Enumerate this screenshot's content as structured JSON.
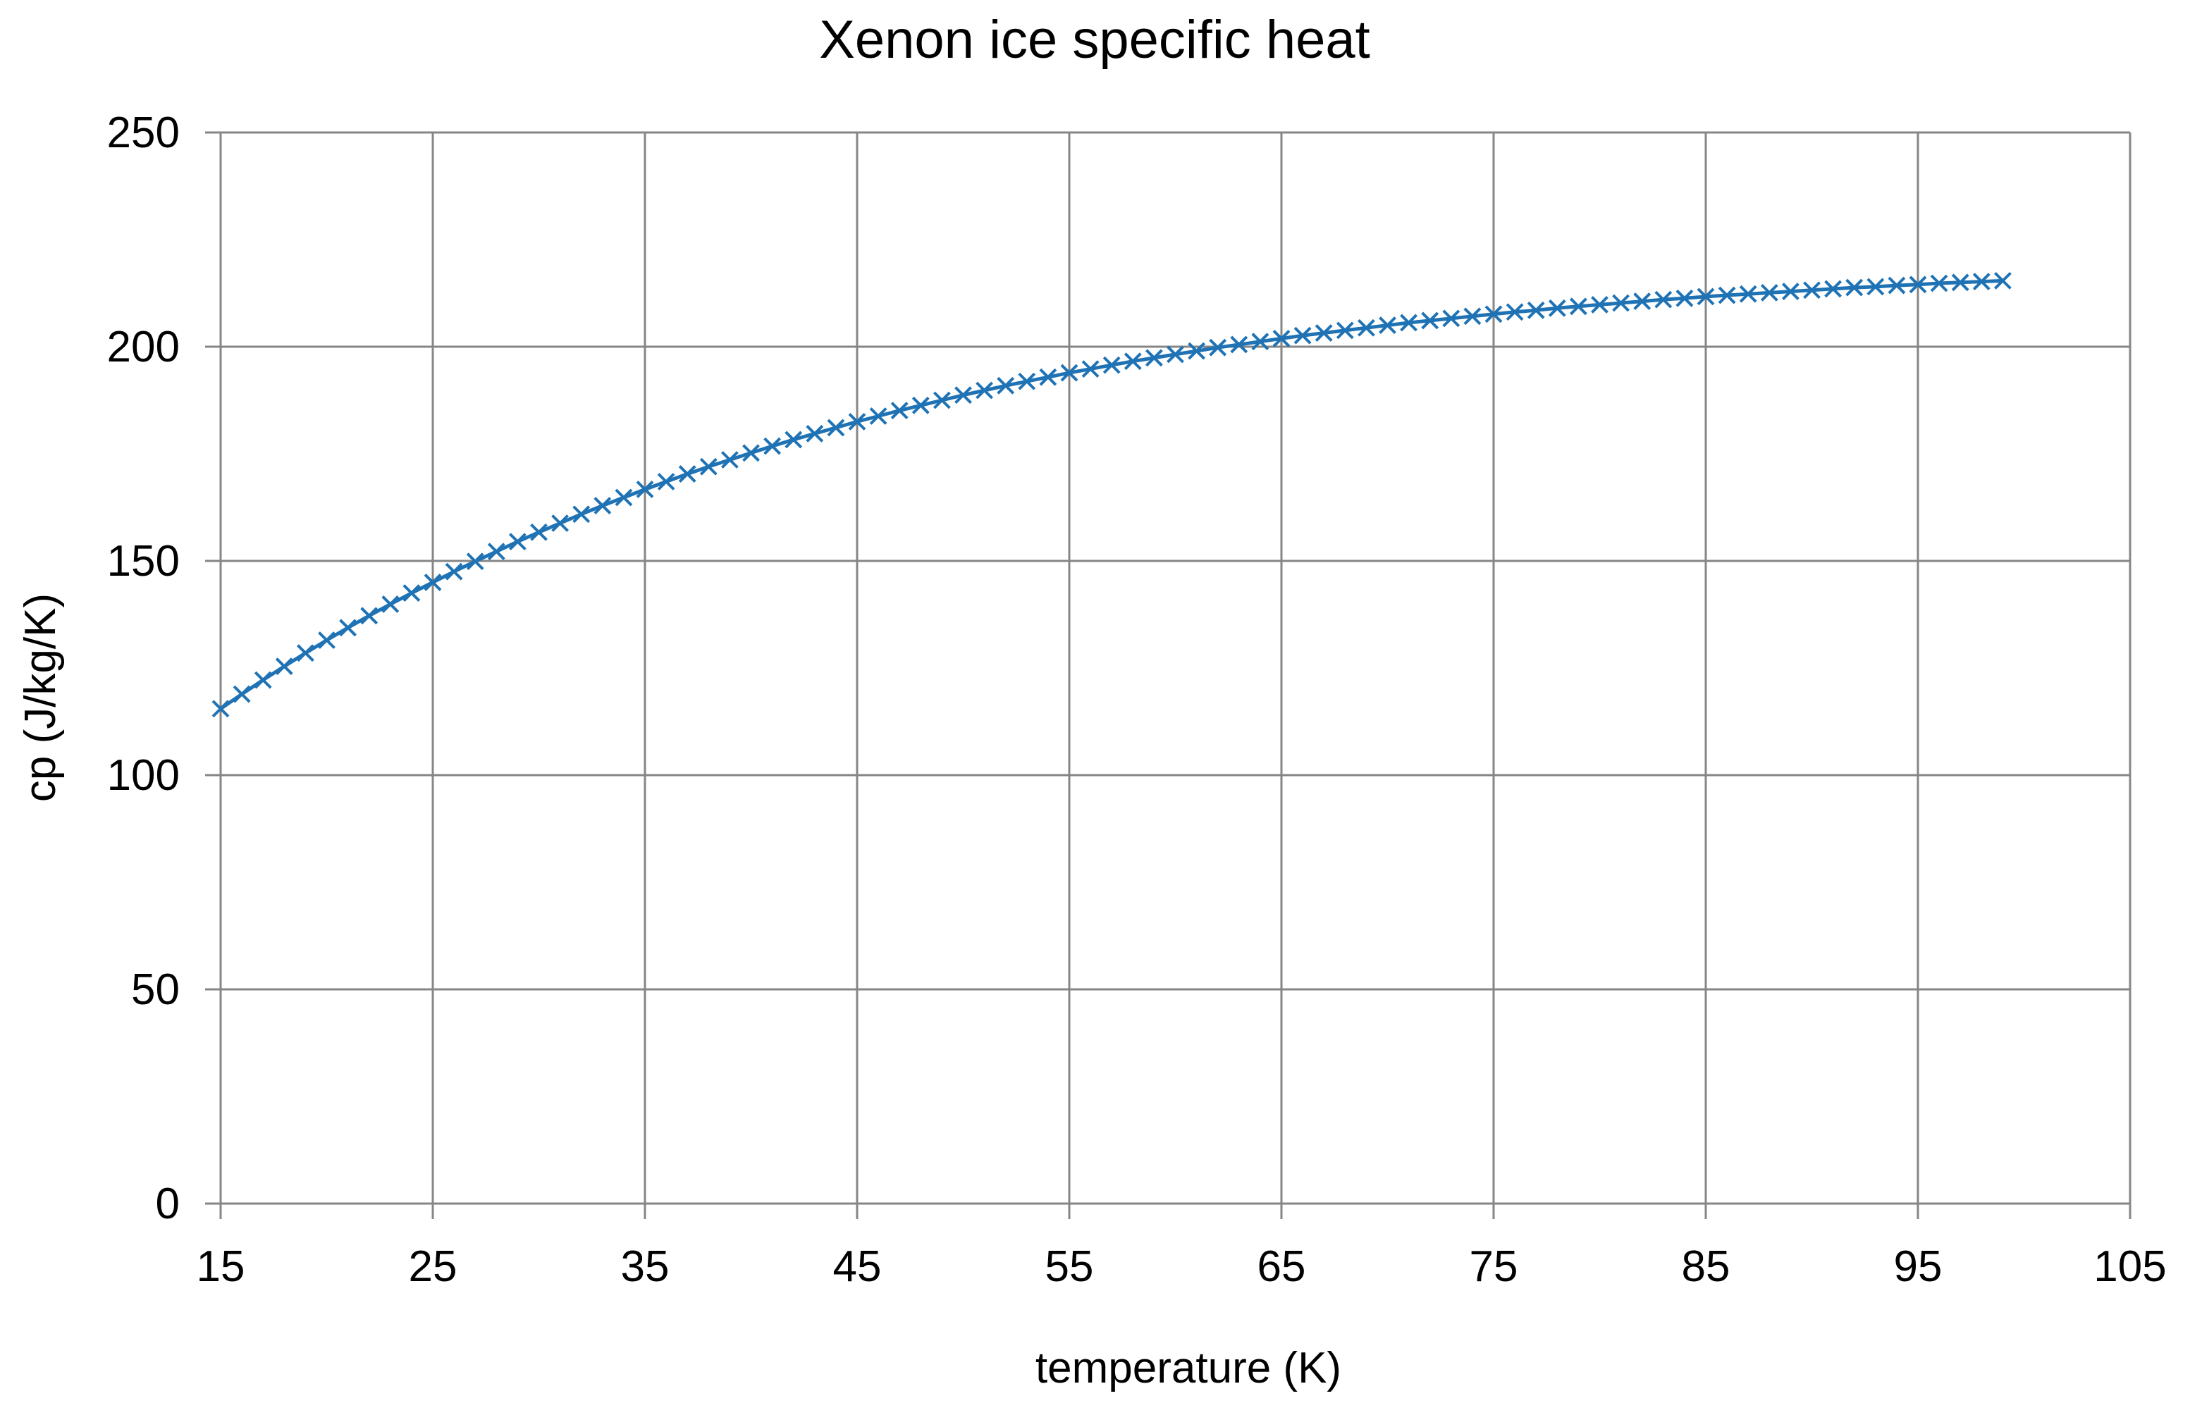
{
  "chart_data": {
    "type": "line",
    "title": "Xenon ice specific heat",
    "xlabel": "temperature  (K)",
    "ylabel": "cp  (J/kg/K)",
    "xlim": [
      15,
      105
    ],
    "ylim": [
      0,
      250
    ],
    "x_ticks": [
      15,
      25,
      35,
      45,
      55,
      65,
      75,
      85,
      95,
      105
    ],
    "y_ticks": [
      0,
      50,
      100,
      150,
      200,
      250
    ],
    "grid": true,
    "legend": "none",
    "marker": "x",
    "series_color": "#1f73b4",
    "grid_color": "#868686",
    "series": [
      {
        "x": [
          15,
          16,
          17,
          18,
          19,
          20,
          21,
          22,
          23,
          24,
          25,
          26,
          27,
          28,
          29,
          30,
          31,
          32,
          33,
          34,
          35,
          36,
          37,
          38,
          39,
          40,
          41,
          42,
          43,
          44,
          45,
          46,
          47,
          48,
          49,
          50,
          51,
          52,
          53,
          54,
          55,
          56,
          57,
          58,
          59,
          60,
          61,
          62,
          63,
          64,
          65,
          66,
          67,
          68,
          69,
          70,
          71,
          72,
          73,
          74,
          75,
          76,
          77,
          78,
          79,
          80,
          81,
          82,
          83,
          84,
          85,
          86,
          87,
          88,
          89,
          90,
          91,
          92,
          93,
          94,
          95,
          96,
          97,
          98,
          99
        ],
        "y": [
          115.5,
          118.9,
          122.2,
          125.4,
          128.5,
          131.5,
          134.4,
          137.2,
          139.9,
          142.5,
          145.0,
          147.5,
          149.9,
          152.2,
          154.5,
          156.7,
          158.8,
          160.9,
          162.9,
          164.8,
          166.7,
          168.5,
          170.3,
          172.0,
          173.6,
          175.2,
          176.8,
          178.3,
          179.7,
          181.1,
          182.5,
          183.8,
          185.1,
          186.3,
          187.5,
          188.7,
          189.8,
          190.9,
          191.9,
          192.9,
          193.9,
          194.8,
          195.7,
          196.6,
          197.4,
          198.2,
          199.0,
          199.8,
          200.5,
          201.2,
          201.9,
          202.6,
          203.2,
          203.8,
          204.4,
          205.0,
          205.6,
          206.1,
          206.6,
          207.1,
          207.6,
          208.1,
          208.5,
          209.0,
          209.4,
          209.8,
          210.2,
          210.6,
          211.0,
          211.3,
          211.7,
          212.0,
          212.3,
          212.6,
          212.9,
          213.2,
          213.5,
          213.8,
          214.0,
          214.3,
          214.5,
          214.8,
          215.0,
          215.2,
          215.4
        ]
      }
    ]
  }
}
